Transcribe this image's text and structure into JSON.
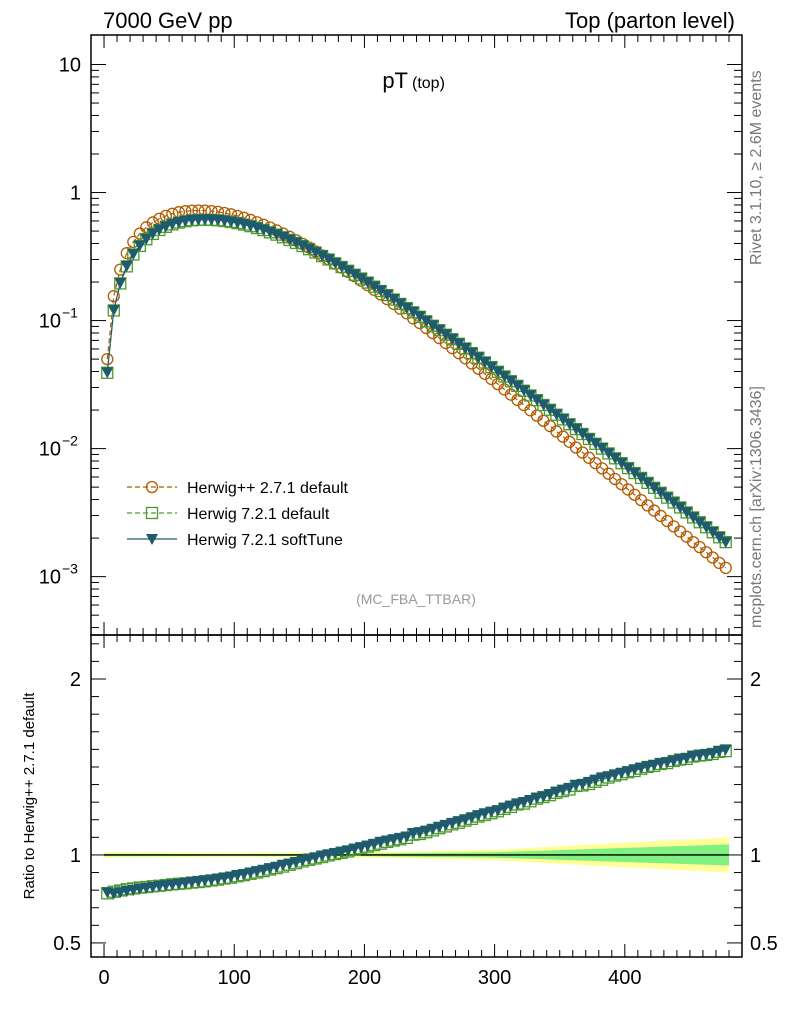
{
  "header": {
    "left": "7000 GeV pp",
    "right": "Top (parton level)"
  },
  "side_labels": {
    "rivet": "Rivet 3.1.10, ≥ 2.6M events",
    "mcplots": "mcplots.cern.ch [arXiv:1306.3436]"
  },
  "chart_data": [
    {
      "type": "line",
      "title_main": "pT",
      "title_sub": "(top)",
      "watermark": "(MC_FBA_TTBAR)",
      "xlabel": "",
      "ylabel": "",
      "xlim": [
        -10,
        490
      ],
      "ylim": [
        0.00035,
        17
      ],
      "yscale": "log",
      "x_ticks": [
        0,
        100,
        200,
        300,
        400
      ],
      "y_tick_labels": [
        {
          "value": 10,
          "label": "10"
        },
        {
          "value": 1,
          "label": "1"
        },
        {
          "value": 0.1,
          "base": "10",
          "exp": "−1"
        },
        {
          "value": 0.01,
          "base": "10",
          "exp": "−2"
        },
        {
          "value": 0.001,
          "base": "10",
          "exp": "−3"
        }
      ],
      "legend_position": "lower-left",
      "x": [
        2.5,
        7.5,
        12.5,
        17.5,
        22.5,
        27.5,
        32.5,
        37.5,
        42.5,
        47.5,
        52.5,
        57.5,
        62.5,
        67.5,
        72.5,
        77.5,
        82.5,
        87.5,
        92.5,
        97.5,
        102.5,
        107.5,
        112.5,
        117.5,
        122.5,
        127.5,
        132.5,
        137.5,
        142.5,
        147.5,
        152.5,
        157.5,
        162.5,
        167.5,
        172.5,
        177.5,
        182.5,
        187.5,
        192.5,
        197.5,
        202.5,
        207.5,
        212.5,
        217.5,
        222.5,
        227.5,
        232.5,
        237.5,
        242.5,
        247.5,
        252.5,
        257.5,
        262.5,
        267.5,
        272.5,
        277.5,
        282.5,
        287.5,
        292.5,
        297.5,
        302.5,
        307.5,
        312.5,
        317.5,
        322.5,
        327.5,
        332.5,
        337.5,
        342.5,
        347.5,
        352.5,
        357.5,
        362.5,
        367.5,
        372.5,
        377.5,
        382.5,
        387.5,
        392.5,
        397.5,
        402.5,
        407.5,
        412.5,
        417.5,
        422.5,
        427.5,
        432.5,
        437.5,
        442.5,
        447.5,
        452.5,
        457.5,
        462.5,
        467.5,
        472.5,
        477.5
      ],
      "series": [
        {
          "name": "Herwig++ 2.7.1 default",
          "color": "#b35900",
          "marker": "open-circle",
          "line": "dashed",
          "values": [
            0.05,
            0.155,
            0.25,
            0.336,
            0.412,
            0.478,
            0.535,
            0.584,
            0.624,
            0.657,
            0.683,
            0.702,
            0.715,
            0.722,
            0.724,
            0.722,
            0.716,
            0.706,
            0.692,
            0.676,
            0.656,
            0.635,
            0.611,
            0.586,
            0.56,
            0.533,
            0.506,
            0.478,
            0.451,
            0.424,
            0.397,
            0.372,
            0.347,
            0.323,
            0.301,
            0.279,
            0.259,
            0.24,
            0.222,
            0.205,
            0.189,
            0.174,
            0.16,
            0.147,
            0.135,
            0.124,
            0.114,
            0.104,
            0.0956,
            0.0874,
            0.0799,
            0.073,
            0.0667,
            0.0609,
            0.0556,
            0.0507,
            0.0462,
            0.0421,
            0.0384,
            0.035,
            0.0319,
            0.029,
            0.0264,
            0.024,
            0.0219,
            0.0199,
            0.0181,
            0.0165,
            0.015,
            0.0136,
            0.0124,
            0.0113,
            0.0102,
            0.00932,
            0.00848,
            0.0077,
            0.00701,
            0.00637,
            0.00579,
            0.00527,
            0.00479,
            0.00436,
            0.00396,
            0.0036,
            0.00328,
            0.00298,
            0.00272,
            0.00247,
            0.00225,
            0.00205,
            0.00186,
            0.0017,
            0.00155,
            0.00141,
            0.00128,
            0.00117
          ]
        },
        {
          "name": "Herwig 7.2.1 default",
          "color": "#4b9b2c",
          "marker": "open-square",
          "line": "dashed",
          "values": [
            0.0391,
            0.12,
            0.195,
            0.265,
            0.328,
            0.383,
            0.432,
            0.475,
            0.51,
            0.54,
            0.564,
            0.583,
            0.597,
            0.607,
            0.612,
            0.614,
            0.612,
            0.607,
            0.599,
            0.589,
            0.577,
            0.562,
            0.546,
            0.528,
            0.509,
            0.489,
            0.469,
            0.447,
            0.426,
            0.404,
            0.382,
            0.361,
            0.34,
            0.319,
            0.3,
            0.28,
            0.262,
            0.245,
            0.228,
            0.213,
            0.198,
            0.184,
            0.17,
            0.158,
            0.146,
            0.135,
            0.125,
            0.116,
            0.107,
            0.0987,
            0.0911,
            0.0841,
            0.0775,
            0.0715,
            0.0658,
            0.0606,
            0.0557,
            0.0513,
            0.0471,
            0.0433,
            0.0398,
            0.0366,
            0.0336,
            0.0309,
            0.0283,
            0.026,
            0.0239,
            0.0219,
            0.0201,
            0.0184,
            0.0169,
            0.0155,
            0.0142,
            0.013,
            0.0119,
            0.0109,
            0.01,
            0.00917,
            0.0084,
            0.00769,
            0.00704,
            0.00644,
            0.0059,
            0.0054,
            0.00494,
            0.00452,
            0.00414,
            0.00379,
            0.00347,
            0.00317,
            0.0029,
            0.00266,
            0.00243,
            0.00222,
            0.00203,
            0.00186
          ]
        },
        {
          "name": "Herwig 7.2.1 softTune",
          "color": "#1f5a6e",
          "marker": "filled-down-triangle",
          "line": "solid",
          "values": [
            0.0394,
            0.121,
            0.197,
            0.267,
            0.33,
            0.386,
            0.435,
            0.478,
            0.514,
            0.544,
            0.568,
            0.587,
            0.601,
            0.611,
            0.616,
            0.618,
            0.616,
            0.611,
            0.603,
            0.593,
            0.581,
            0.566,
            0.55,
            0.532,
            0.513,
            0.493,
            0.472,
            0.451,
            0.429,
            0.407,
            0.385,
            0.364,
            0.342,
            0.322,
            0.302,
            0.282,
            0.264,
            0.246,
            0.23,
            0.214,
            0.199,
            0.185,
            0.172,
            0.159,
            0.147,
            0.136,
            0.126,
            0.117,
            0.108,
            0.0995,
            0.0918,
            0.0847,
            0.0781,
            0.072,
            0.0663,
            0.061,
            0.0561,
            0.0516,
            0.0475,
            0.0436,
            0.04,
            0.0368,
            0.0338,
            0.031,
            0.0285,
            0.0261,
            0.024,
            0.022,
            0.0202,
            0.0185,
            0.017,
            0.0156,
            0.0143,
            0.0131,
            0.012,
            0.011,
            0.0101,
            0.00922,
            0.00844,
            0.00773,
            0.00707,
            0.00647,
            0.00592,
            0.00542,
            0.00496,
            0.00454,
            0.00415,
            0.0038,
            0.00348,
            0.00318,
            0.00291,
            0.00266,
            0.00244,
            0.00223,
            0.00204,
            0.00186
          ]
        }
      ]
    },
    {
      "type": "line",
      "ylabel": "Ratio to Herwig++ 2.7.1 default",
      "xlim": [
        -10,
        490
      ],
      "ylim": [
        0.42,
        2.25
      ],
      "x_ticks": [
        0,
        100,
        200,
        300,
        400
      ],
      "y_tick_labels": [
        {
          "value": 2,
          "label": "2"
        },
        {
          "value": 1,
          "label": "1"
        },
        {
          "value": 0.5,
          "label": "0.5"
        }
      ],
      "reference_line": 1,
      "bands": [
        {
          "color": "#ffff99",
          "x": [
            0,
            100,
            200,
            300,
            400,
            480
          ],
          "low": [
            0.985,
            0.988,
            0.985,
            0.97,
            0.93,
            0.9
          ],
          "high": [
            1.015,
            1.012,
            1.015,
            1.03,
            1.07,
            1.1
          ]
        },
        {
          "color": "#80f080",
          "x": [
            0,
            100,
            200,
            300,
            400,
            480
          ],
          "low": [
            0.993,
            0.995,
            0.993,
            0.985,
            0.96,
            0.94
          ],
          "high": [
            1.007,
            1.005,
            1.007,
            1.015,
            1.04,
            1.06
          ]
        }
      ],
      "x": [
        2.5,
        7.5,
        12.5,
        17.5,
        22.5,
        27.5,
        32.5,
        37.5,
        42.5,
        47.5,
        52.5,
        57.5,
        62.5,
        67.5,
        72.5,
        77.5,
        82.5,
        87.5,
        92.5,
        97.5,
        102.5,
        107.5,
        112.5,
        117.5,
        122.5,
        127.5,
        132.5,
        137.5,
        142.5,
        147.5,
        152.5,
        157.5,
        162.5,
        167.5,
        172.5,
        177.5,
        182.5,
        187.5,
        192.5,
        197.5,
        202.5,
        207.5,
        212.5,
        217.5,
        222.5,
        227.5,
        232.5,
        237.5,
        242.5,
        247.5,
        252.5,
        257.5,
        262.5,
        267.5,
        272.5,
        277.5,
        282.5,
        287.5,
        292.5,
        297.5,
        302.5,
        307.5,
        312.5,
        317.5,
        322.5,
        327.5,
        332.5,
        337.5,
        342.5,
        347.5,
        352.5,
        357.5,
        362.5,
        367.5,
        372.5,
        377.5,
        382.5,
        387.5,
        392.5,
        397.5,
        402.5,
        407.5,
        412.5,
        417.5,
        422.5,
        427.5,
        432.5,
        437.5,
        442.5,
        447.5,
        452.5,
        457.5,
        462.5,
        467.5,
        472.5,
        477.5
      ],
      "series": [
        {
          "name": "Herwig 7.2.1 default",
          "color": "#4b9b2c",
          "marker": "open-square",
          "line": "dashed",
          "values": [
            0.782,
            0.791,
            0.798,
            0.805,
            0.81,
            0.815,
            0.818,
            0.822,
            0.825,
            0.829,
            0.833,
            0.836,
            0.839,
            0.843,
            0.846,
            0.85,
            0.855,
            0.86,
            0.866,
            0.871,
            0.879,
            0.885,
            0.893,
            0.9,
            0.908,
            0.917,
            0.925,
            0.934,
            0.944,
            0.953,
            0.963,
            0.972,
            0.98,
            0.988,
            0.997,
            1.005,
            1.012,
            1.02,
            1.029,
            1.038,
            1.047,
            1.056,
            1.064,
            1.074,
            1.082,
            1.089,
            1.097,
            1.115,
            1.119,
            1.129,
            1.14,
            1.152,
            1.162,
            1.174,
            1.183,
            1.195,
            1.205,
            1.218,
            1.227,
            1.237,
            1.248,
            1.262,
            1.273,
            1.287,
            1.292,
            1.305,
            1.32,
            1.329,
            1.34,
            1.353,
            1.363,
            1.372,
            1.392,
            1.395,
            1.403,
            1.416,
            1.427,
            1.44,
            1.451,
            1.459,
            1.47,
            1.477,
            1.49,
            1.5,
            1.506,
            1.517,
            1.522,
            1.534,
            1.542,
            1.546,
            1.559,
            1.565,
            1.568,
            1.574,
            1.586,
            1.59
          ]
        },
        {
          "name": "Herwig 7.2.1 softTune",
          "color": "#1f5a6e",
          "marker": "filled-down-triangle",
          "line": "solid",
          "values": [
            0.788,
            0.781,
            0.788,
            0.795,
            0.801,
            0.808,
            0.813,
            0.818,
            0.824,
            0.828,
            0.832,
            0.836,
            0.841,
            0.846,
            0.851,
            0.856,
            0.86,
            0.865,
            0.871,
            0.877,
            0.886,
            0.891,
            0.9,
            0.908,
            0.916,
            0.925,
            0.933,
            0.944,
            0.951,
            0.96,
            0.97,
            0.979,
            0.986,
            0.997,
            1.003,
            1.011,
            1.019,
            1.025,
            1.036,
            1.044,
            1.053,
            1.063,
            1.075,
            1.082,
            1.089,
            1.097,
            1.105,
            1.125,
            1.13,
            1.138,
            1.149,
            1.16,
            1.171,
            1.182,
            1.192,
            1.203,
            1.214,
            1.226,
            1.237,
            1.246,
            1.254,
            1.269,
            1.28,
            1.292,
            1.301,
            1.312,
            1.325,
            1.333,
            1.345,
            1.36,
            1.371,
            1.381,
            1.398,
            1.404,
            1.415,
            1.428,
            1.441,
            1.447,
            1.458,
            1.467,
            1.476,
            1.487,
            1.496,
            1.504,
            1.512,
            1.522,
            1.527,
            1.535,
            1.545,
            1.551,
            1.563,
            1.567,
            1.573,
            1.578,
            1.591,
            1.6
          ]
        }
      ]
    }
  ]
}
